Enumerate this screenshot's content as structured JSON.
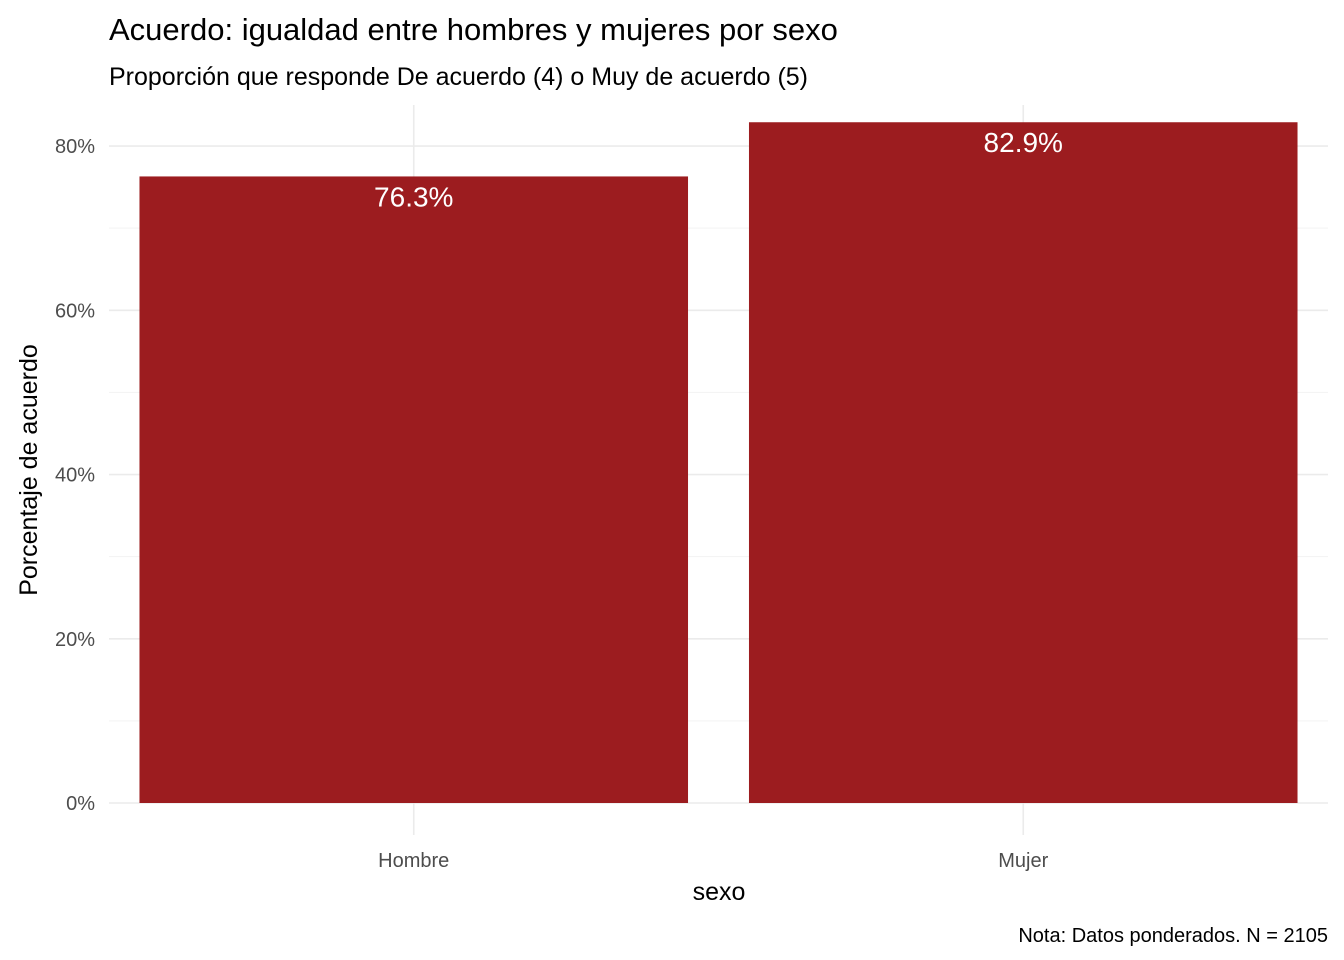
{
  "chart_data": {
    "type": "bar",
    "title": "Acuerdo: igualdad entre hombres y mujeres por sexo",
    "subtitle": "Proporción que responde De acuerdo (4) o Muy de acuerdo (5)",
    "xlabel": "sexo",
    "ylabel": "Porcentaje de acuerdo",
    "caption": "Nota: Datos ponderados. N = 2105",
    "categories": [
      "Hombre",
      "Mujer"
    ],
    "values": [
      76.3,
      82.9
    ],
    "data_labels": [
      "76.3%",
      "82.9%"
    ],
    "ylim": [
      0,
      85
    ],
    "yticks": [
      0,
      20,
      40,
      60,
      80
    ],
    "ytick_labels": [
      "0%",
      "20%",
      "40%",
      "60%",
      "80%"
    ],
    "grid": true,
    "legend": "none",
    "bar_color": "#9c1c1f"
  }
}
